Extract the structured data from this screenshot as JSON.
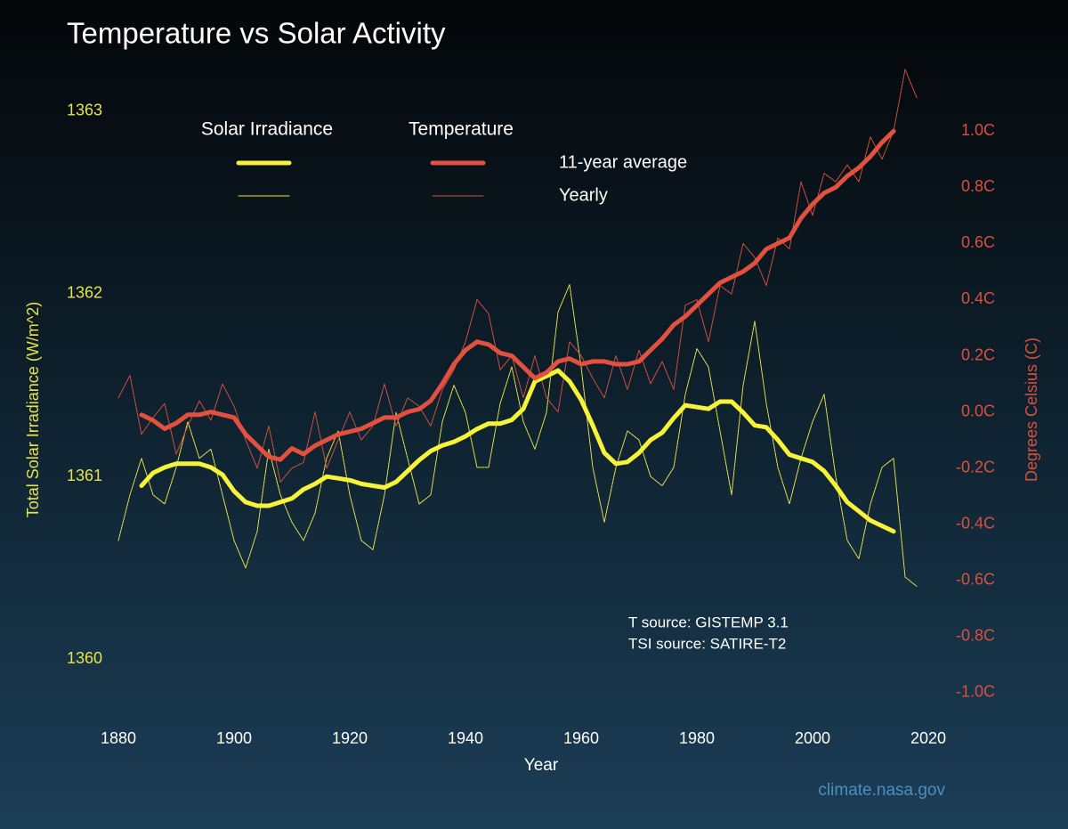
{
  "chart_data": {
    "type": "line",
    "title": "Temperature vs Solar Activity",
    "x_label": "Year",
    "y_label": "Total Solar Irradiance (W/m^2)",
    "y2_label": "Degrees Celsius (C)",
    "annotations": [
      "T source: GISTEMP 3.1",
      "TSI source: SATIRE-T2"
    ],
    "credit": "climate.nasa.gov",
    "legend": {
      "columns": [
        "Solar Irradiance",
        "Temperature"
      ],
      "rows": [
        "11-year average",
        "Yearly"
      ]
    },
    "x": [
      1880,
      1882,
      1884,
      1886,
      1888,
      1890,
      1892,
      1894,
      1896,
      1898,
      1900,
      1902,
      1904,
      1906,
      1908,
      1910,
      1912,
      1914,
      1916,
      1918,
      1920,
      1922,
      1924,
      1926,
      1928,
      1930,
      1932,
      1934,
      1936,
      1938,
      1940,
      1942,
      1944,
      1946,
      1948,
      1950,
      1952,
      1954,
      1956,
      1958,
      1960,
      1962,
      1964,
      1966,
      1968,
      1970,
      1972,
      1974,
      1976,
      1978,
      1980,
      1982,
      1984,
      1986,
      1988,
      1990,
      1992,
      1994,
      1996,
      1998,
      2000,
      2002,
      2004,
      2006,
      2008,
      2010,
      2012,
      2014,
      2016,
      2018
    ],
    "xlim": [
      1880,
      2020
    ],
    "xticks": [
      1880,
      1900,
      1920,
      1940,
      1960,
      1980,
      2000,
      2020
    ],
    "ylim": [
      1359.71,
      1363.12
    ],
    "yticks": [
      1360,
      1361,
      1362,
      1363
    ],
    "y2lim": [
      -1.07,
      1.15
    ],
    "y2ticks": [
      {
        "value": 1.0,
        "label": "1.0C"
      },
      {
        "value": 0.8,
        "label": "0.8C"
      },
      {
        "value": 0.6,
        "label": "0.6C"
      },
      {
        "value": 0.4,
        "label": "0.4C"
      },
      {
        "value": 0.2,
        "label": "0.2C"
      },
      {
        "value": 0,
        "label": "0.0C"
      },
      {
        "value": -0.2,
        "label": "-0.2C"
      },
      {
        "value": -0.4,
        "label": "-0.4C"
      },
      {
        "value": -0.6,
        "label": "-0.6C"
      },
      {
        "value": -0.8,
        "label": "-0.8C"
      },
      {
        "value": -1.0,
        "label": "-1.0C"
      }
    ],
    "series": [
      {
        "legend_column": 0,
        "legend_row": 1,
        "color": "#e8e24a",
        "width": 1,
        "axis": "y",
        "values": [
          1360.65,
          1360.9,
          1361.1,
          1360.9,
          1360.85,
          1361.05,
          1361.3,
          1361.1,
          1361.15,
          1360.9,
          1360.65,
          1360.5,
          1360.7,
          1361.15,
          1360.9,
          1360.75,
          1360.65,
          1360.8,
          1361.1,
          1361.25,
          1360.9,
          1360.65,
          1360.6,
          1360.9,
          1361.35,
          1361.1,
          1360.85,
          1360.9,
          1361.3,
          1361.5,
          1361.35,
          1361.05,
          1361.05,
          1361.4,
          1361.6,
          1361.3,
          1361.15,
          1361.35,
          1361.9,
          1362.05,
          1361.6,
          1361.05,
          1360.75,
          1361.05,
          1361.25,
          1361.2,
          1361.0,
          1360.95,
          1361.05,
          1361.45,
          1361.7,
          1361.6,
          1361.25,
          1360.9,
          1361.5,
          1361.85,
          1361.4,
          1361.05,
          1360.85,
          1361.1,
          1361.3,
          1361.45,
          1361.0,
          1360.65,
          1360.55,
          1360.85,
          1361.05,
          1361.1,
          1360.45,
          1360.4
        ]
      },
      {
        "legend_column": 1,
        "legend_row": 1,
        "color": "#d8503e",
        "width": 1,
        "axis": "y2",
        "values": [
          0.05,
          0.13,
          -0.08,
          -0.02,
          0.03,
          -0.15,
          -0.05,
          0.04,
          -0.03,
          0.1,
          0.02,
          -0.1,
          -0.2,
          -0.05,
          -0.25,
          -0.2,
          -0.18,
          0.0,
          -0.2,
          -0.1,
          0.0,
          -0.1,
          -0.05,
          0.1,
          -0.05,
          0.05,
          0.02,
          -0.05,
          0.08,
          0.15,
          0.25,
          0.4,
          0.35,
          0.15,
          0.2,
          0.05,
          0.2,
          0.05,
          0.0,
          0.25,
          0.2,
          0.12,
          0.05,
          0.2,
          0.08,
          0.22,
          0.1,
          0.18,
          0.08,
          0.38,
          0.4,
          0.25,
          0.45,
          0.42,
          0.6,
          0.55,
          0.45,
          0.62,
          0.58,
          0.82,
          0.7,
          0.85,
          0.82,
          0.88,
          0.82,
          0.98,
          0.9,
          1.0,
          1.22,
          1.12
        ]
      },
      {
        "legend_column": 0,
        "legend_row": 0,
        "color": "#f7f23a",
        "width": 5,
        "axis": "y",
        "values": [
          null,
          null,
          1360.95,
          1361.02,
          1361.05,
          1361.07,
          1361.07,
          1361.07,
          1361.05,
          1361.01,
          1360.92,
          1360.86,
          1360.84,
          1360.84,
          1360.86,
          1360.88,
          1360.93,
          1360.96,
          1361.0,
          1360.99,
          1360.98,
          1360.96,
          1360.95,
          1360.94,
          1360.97,
          1361.03,
          1361.09,
          1361.14,
          1361.17,
          1361.19,
          1361.22,
          1361.26,
          1361.29,
          1361.29,
          1361.31,
          1361.37,
          1361.52,
          1361.55,
          1361.58,
          1361.52,
          1361.42,
          1361.28,
          1361.13,
          1361.07,
          1361.08,
          1361.13,
          1361.2,
          1361.24,
          1361.32,
          1361.39,
          1361.38,
          1361.37,
          1361.41,
          1361.41,
          1361.35,
          1361.28,
          1361.27,
          1361.2,
          1361.12,
          1361.1,
          1361.08,
          1361.03,
          1360.95,
          1360.86,
          1360.81,
          1360.76,
          1360.73,
          1360.7,
          null,
          null
        ]
      },
      {
        "legend_column": 1,
        "legend_row": 0,
        "color": "#e2503f",
        "width": 5,
        "axis": "y2",
        "values": [
          null,
          null,
          -0.01,
          -0.03,
          -0.06,
          -0.04,
          -0.01,
          -0.01,
          0.0,
          -0.01,
          -0.02,
          -0.08,
          -0.12,
          -0.16,
          -0.17,
          -0.13,
          -0.15,
          -0.12,
          -0.1,
          -0.08,
          -0.07,
          -0.06,
          -0.04,
          -0.02,
          -0.02,
          0.0,
          0.01,
          0.04,
          0.1,
          0.17,
          0.22,
          0.25,
          0.24,
          0.21,
          0.2,
          0.16,
          0.12,
          0.14,
          0.18,
          0.19,
          0.17,
          0.18,
          0.18,
          0.17,
          0.17,
          0.18,
          0.22,
          0.26,
          0.31,
          0.34,
          0.38,
          0.42,
          0.46,
          0.48,
          0.5,
          0.53,
          0.58,
          0.6,
          0.62,
          0.69,
          0.74,
          0.78,
          0.8,
          0.84,
          0.87,
          0.91,
          0.96,
          1.0,
          null,
          null
        ]
      }
    ]
  }
}
